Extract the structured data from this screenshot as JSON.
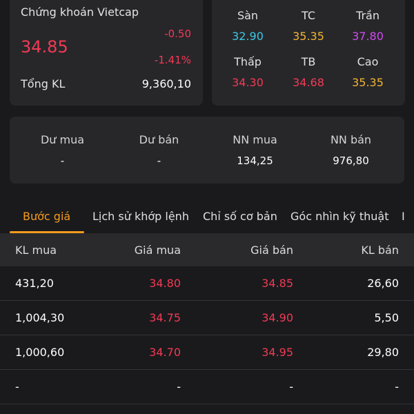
{
  "quote": {
    "company": "Chứng khoán Vietcap",
    "price": "34.85",
    "change": "-0.50",
    "change_pct": "-1.41%",
    "volume_label": "Tổng KL",
    "volume_value": "9,360,10"
  },
  "prices": {
    "floor_label": "Sàn",
    "floor_value": "32.90",
    "ref_label": "TC",
    "ref_value": "35.35",
    "ceiling_label": "Trần",
    "ceiling_value": "37.80",
    "low_label": "Thấp",
    "low_value": "34.30",
    "avg_label": "TB",
    "avg_value": "34.68",
    "high_label": "Cao",
    "high_value": "35.35"
  },
  "orders": {
    "buy_surplus_label": "Dư mua",
    "buy_surplus_value": "-",
    "sell_surplus_label": "Dư bán",
    "sell_surplus_value": "-",
    "foreign_buy_label": "NN mua",
    "foreign_buy_value": "134,25",
    "foreign_sell_label": "NN bán",
    "foreign_sell_value": "976,80"
  },
  "tabs": [
    {
      "label": "Bước giá",
      "active": true
    },
    {
      "label": "Lịch sử khớp lệnh",
      "active": false
    },
    {
      "label": "Chỉ số cơ bản",
      "active": false
    },
    {
      "label": "Góc nhìn kỹ thuật",
      "active": false
    },
    {
      "label": "I",
      "active": false
    }
  ],
  "table": {
    "headers": [
      "KL mua",
      "Giá mua",
      "Giá bán",
      "KL bán"
    ],
    "rows": [
      [
        "431,20",
        "34.80",
        "34.85",
        "26,60"
      ],
      [
        "1,004,30",
        "34.75",
        "34.90",
        "5,50"
      ],
      [
        "1,000,60",
        "34.70",
        "34.95",
        "29,80"
      ],
      [
        "-",
        "-",
        "-",
        "-"
      ]
    ]
  },
  "colors": {
    "down": "#f23a54",
    "floor": "#3cc8e6",
    "reference": "#f2b531",
    "ceiling": "#d24af0",
    "accent": "#f59b1d"
  }
}
